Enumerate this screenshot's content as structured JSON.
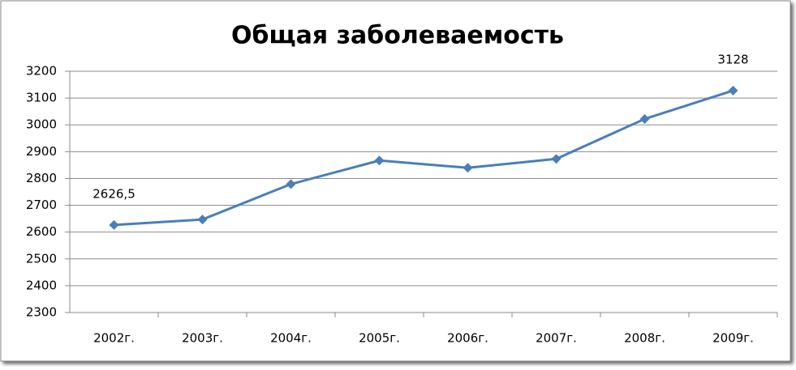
{
  "chart_data": {
    "type": "line",
    "title": "Общая заболеваемость",
    "categories": [
      "2002г.",
      "2003г.",
      "2004г.",
      "2005г.",
      "2006г.",
      "2007г.",
      "2008г.",
      "2009г."
    ],
    "series": [
      {
        "name": "Общая заболеваемость",
        "color": "#4a7ebb",
        "values": [
          2626.5,
          2647,
          2779,
          2867,
          2840,
          2873,
          3022,
          3128
        ],
        "value_labels": [
          "2626,5",
          null,
          null,
          null,
          null,
          null,
          null,
          "3128"
        ]
      }
    ],
    "ylim": [
      2300,
      3200
    ],
    "yticks": [
      2300,
      2400,
      2500,
      2600,
      2700,
      2800,
      2900,
      3000,
      3100,
      3200
    ],
    "grid": true
  }
}
